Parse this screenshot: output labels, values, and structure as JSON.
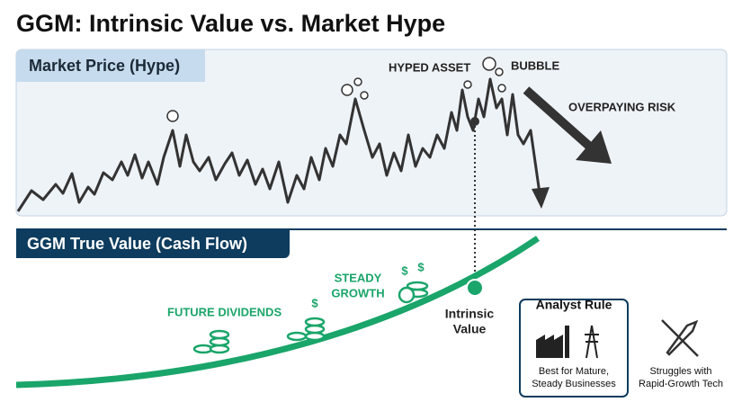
{
  "title": "GGM: Intrinsic Value vs. Market Hype",
  "market_panel": {
    "label": "Market Price (Hype)",
    "annotations": {
      "hyped_asset": "HYPED ASSET",
      "bubble": "BUBBLE",
      "overpaying_risk": "OVERPAYING RISK"
    }
  },
  "value_panel": {
    "label": "GGM True Value (Cash Flow)",
    "steady_growth": [
      "STEADY",
      "GROWTH"
    ],
    "future_dividends": "FUTURE DIVIDENDS",
    "intrinsic_value": [
      "Intrinsic",
      "Value"
    ]
  },
  "analyst_rule": {
    "title": "Analyst Rule",
    "best_for": [
      "Best for Mature,",
      "Steady Businesses"
    ],
    "struggles": [
      "Struggles with",
      "Rapid-Growth Tech"
    ]
  }
}
